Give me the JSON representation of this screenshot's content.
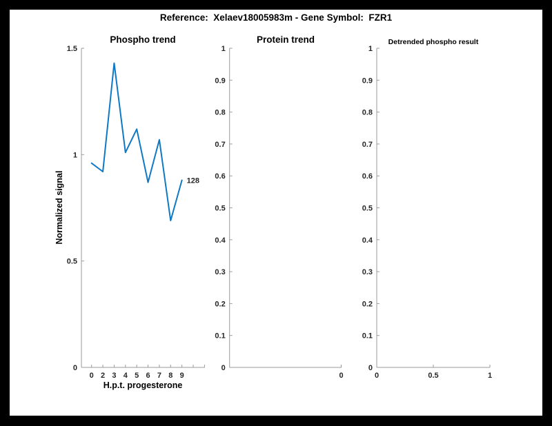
{
  "figure": {
    "title": "Reference:  Xelaev18005983m - Gene Symbol:  FZR1"
  },
  "colors": {
    "line": "#0e78c4",
    "axis": "#9a9a9a",
    "tick_text": "#262626",
    "background": "#ffffff",
    "frame": "#000000"
  },
  "chart_data": [
    {
      "id": "phospho-trend",
      "type": "line",
      "title": "Phospho trend",
      "xlabel": "H.p.t. progesterone",
      "ylabel": "Normalized signal",
      "x": [
        0,
        2,
        3,
        4,
        5,
        6,
        7,
        8,
        9
      ],
      "values": [
        0.96,
        0.92,
        1.43,
        1.01,
        1.12,
        0.87,
        1.07,
        0.69,
        0.88
      ],
      "annotation": "128",
      "ylim": [
        0,
        1.5
      ],
      "y_ticks": [
        0,
        0.5,
        1,
        1.5
      ],
      "y_tick_labels": [
        "0",
        "0.5",
        "1",
        "1.5"
      ],
      "x_tick_labels": [
        "0",
        "2",
        "3",
        "4",
        "5",
        "6",
        "7",
        "8",
        "9"
      ],
      "grid": false,
      "legend": "none"
    },
    {
      "id": "protein-trend",
      "type": "line",
      "title": "Protein trend",
      "xlabel": "",
      "ylabel": "",
      "x": [],
      "values": [],
      "ylim": [
        0,
        1
      ],
      "y_ticks": [
        0,
        0.1,
        0.2,
        0.3,
        0.4,
        0.5,
        0.6,
        0.7,
        0.8,
        0.9,
        1
      ],
      "y_tick_labels": [
        "0",
        "0.1",
        "0.2",
        "0.3",
        "0.4",
        "0.5",
        "0.6",
        "0.7",
        "0.8",
        "0.9",
        "1"
      ],
      "x_tick_labels": [
        "0"
      ],
      "grid": false,
      "legend": "none"
    },
    {
      "id": "detrended-phospho-result",
      "type": "line",
      "title": "Detrended phospho result",
      "xlabel": "",
      "ylabel": "",
      "x": [],
      "values": [],
      "ylim": [
        0,
        1
      ],
      "y_ticks": [
        0,
        0.1,
        0.2,
        0.3,
        0.4,
        0.5,
        0.6,
        0.7,
        0.8,
        0.9,
        1
      ],
      "y_tick_labels": [
        "0",
        "0.1",
        "0.2",
        "0.3",
        "0.4",
        "0.5",
        "0.6",
        "0.7",
        "0.8",
        "0.9",
        "1"
      ],
      "x_tick_labels": [
        "0",
        "0.5",
        "1"
      ],
      "grid": false,
      "legend": "none"
    }
  ]
}
